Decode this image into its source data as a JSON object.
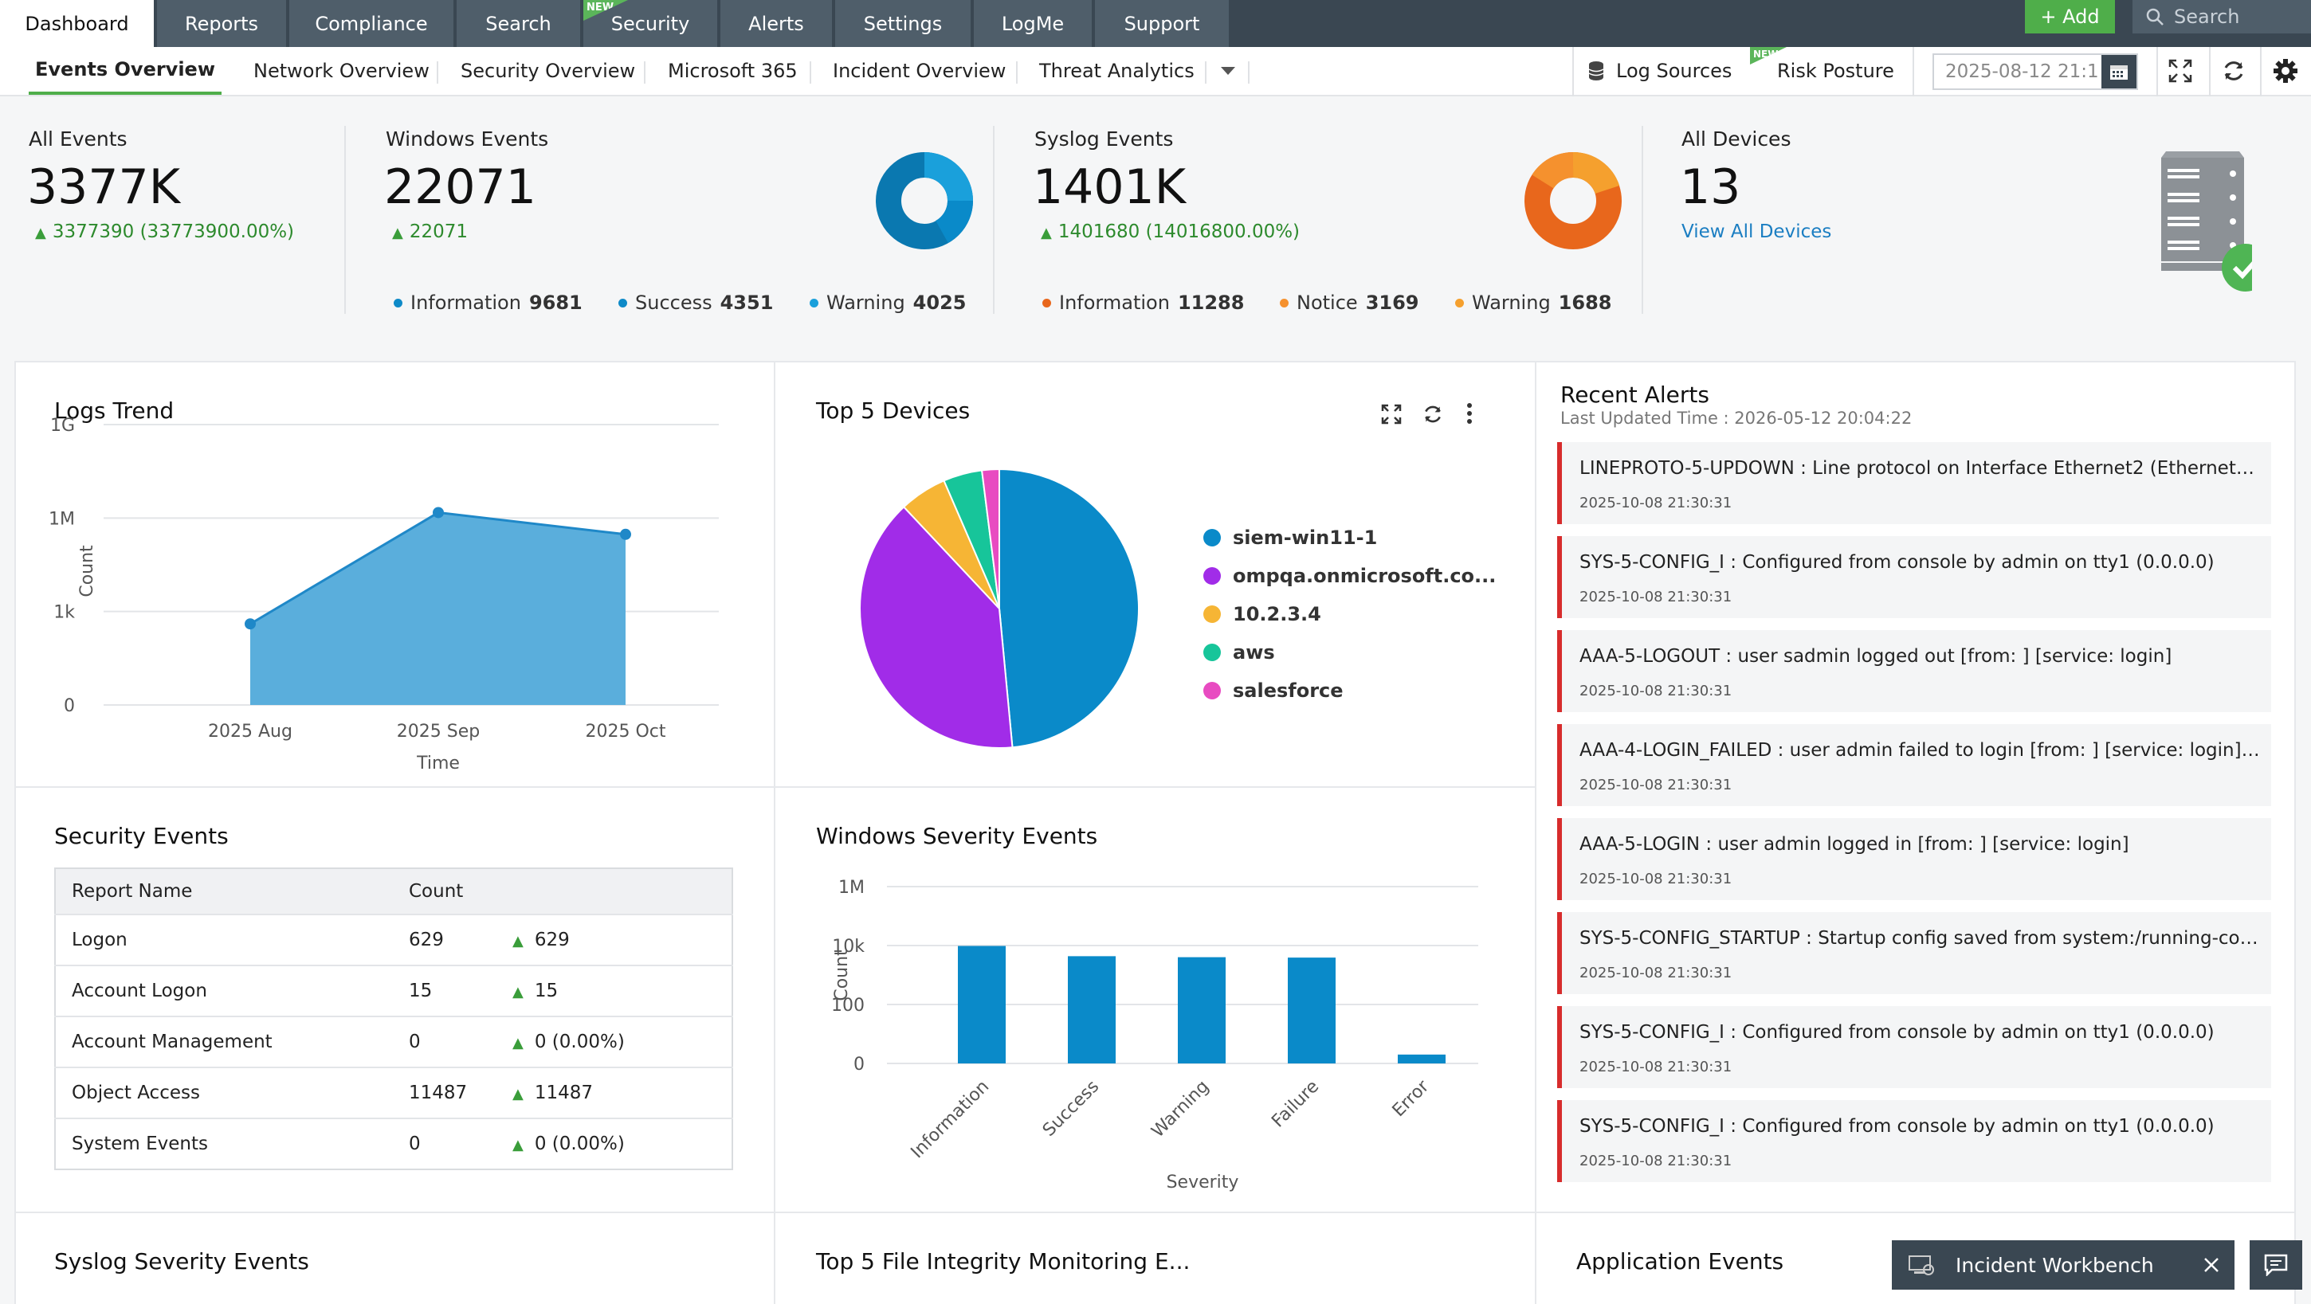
{
  "topnav": {
    "tabs": [
      {
        "label": "Dashboard",
        "active": true
      },
      {
        "label": "Reports"
      },
      {
        "label": "Compliance"
      },
      {
        "label": "Search"
      },
      {
        "label": "Security",
        "badge": "NEW"
      },
      {
        "label": "Alerts"
      },
      {
        "label": "Settings"
      },
      {
        "label": "LogMe"
      },
      {
        "label": "Support"
      }
    ],
    "add_label": "+ Add",
    "search_placeholder": "Search"
  },
  "subnav": {
    "tabs": [
      {
        "label": "Events Overview",
        "active": true
      },
      {
        "label": "Network Overview"
      },
      {
        "label": "Security Overview"
      },
      {
        "label": "Microsoft 365"
      },
      {
        "label": "Incident Overview"
      },
      {
        "label": "Threat Analytics"
      }
    ],
    "log_sources_label": "Log Sources",
    "risk_posture_label": "Risk Posture",
    "risk_badge": "NEW",
    "date_value": "2025-08-12 21:1"
  },
  "summary": {
    "all_events": {
      "title": "All Events",
      "value": "3377K",
      "delta": "3377390 (33773900.00%)"
    },
    "windows_events": {
      "title": "Windows Events",
      "value": "22071",
      "delta": "22071",
      "legend": [
        {
          "label": "Information",
          "count": "9681",
          "color": "#0e8ac8"
        },
        {
          "label": "Success",
          "count": "4351",
          "color": "#0e8ac8"
        },
        {
          "label": "Warning",
          "count": "4025",
          "color": "#1aa0db"
        }
      ]
    },
    "syslog_events": {
      "title": "Syslog Events",
      "value": "1401K",
      "delta": "1401680 (14016800.00%)",
      "legend": [
        {
          "label": "Information",
          "count": "11288",
          "color": "#e8671c"
        },
        {
          "label": "Notice",
          "count": "3169",
          "color": "#f5912e"
        },
        {
          "label": "Warning",
          "count": "1688",
          "color": "#f5a02e"
        }
      ]
    },
    "all_devices": {
      "title": "All Devices",
      "value": "13",
      "link": "View All Devices"
    }
  },
  "logs_trend": {
    "title": "Logs Trend",
    "chart_data": {
      "type": "area",
      "categories": [
        "2025 Aug",
        "2025 Sep",
        "2025 Oct"
      ],
      "values": [
        400,
        1500000,
        300000
      ],
      "xlabel": "Time",
      "ylabel": "Count",
      "yscale": "log",
      "yticks": [
        "0",
        "1k",
        "1M",
        "1G"
      ],
      "color": "#5aaedc"
    }
  },
  "top5_devices": {
    "title": "Top 5 Devices",
    "chart_data": {
      "type": "pie",
      "labels": [
        "siem-win11-1",
        "ompqa.onmicrosoft.co...",
        "10.2.3.4",
        "aws",
        "salesforce"
      ],
      "values": [
        48.5,
        39.5,
        5.5,
        4.5,
        2.0
      ],
      "colors": [
        "#0a8ac9",
        "#a12ce8",
        "#f6b535",
        "#17c59a",
        "#e84bc1"
      ]
    }
  },
  "recent_alerts": {
    "title": "Recent Alerts",
    "updated": "Last Updated Time : 2026-05-12 20:04:22",
    "items": [
      {
        "msg": "LINEPROTO-5-UPDOWN : Line protocol on Interface Ethernet2 (Ethernet123...",
        "time": "2025-10-08 21:30:31"
      },
      {
        "msg": "SYS-5-CONFIG_I : Configured from console by admin on tty1 (0.0.0.0)",
        "time": "2025-10-08 21:30:31"
      },
      {
        "msg": "AAA-5-LOGOUT : user sadmin logged out [from: ] [service: login]",
        "time": "2025-10-08 21:30:31"
      },
      {
        "msg": "AAA-4-LOGIN_FAILED : user admin failed to login [from: ] [service: login] [...",
        "time": "2025-10-08 21:30:31"
      },
      {
        "msg": "AAA-5-LOGIN : user admin logged in [from: ] [service: login]",
        "time": "2025-10-08 21:30:31"
      },
      {
        "msg": "SYS-5-CONFIG_STARTUP : Startup config saved from system:/running-conf...",
        "time": "2025-10-08 21:30:31"
      },
      {
        "msg": "SYS-5-CONFIG_I : Configured from console by admin on tty1 (0.0.0.0)",
        "time": "2025-10-08 21:30:31"
      },
      {
        "msg": "SYS-5-CONFIG_I : Configured from console by admin on tty1 (0.0.0.0)",
        "time": "2025-10-08 21:30:31"
      }
    ]
  },
  "security_events": {
    "title": "Security Events",
    "headers": [
      "Report Name",
      "Count"
    ],
    "rows": [
      {
        "name": "Logon",
        "count": "629",
        "delta": "629"
      },
      {
        "name": "Account Logon",
        "count": "15",
        "delta": "15"
      },
      {
        "name": "Account Management",
        "count": "0",
        "delta": "0 (0.00%)"
      },
      {
        "name": "Object Access",
        "count": "11487",
        "delta": "11487"
      },
      {
        "name": "System Events",
        "count": "0",
        "delta": "0 (0.00%)"
      }
    ]
  },
  "windows_severity": {
    "title": "Windows Severity Events",
    "chart_data": {
      "type": "bar",
      "categories": [
        "Information",
        "Success",
        "Warning",
        "Failure",
        "Error"
      ],
      "values": [
        9681,
        4351,
        4025,
        3900,
        2
      ],
      "xlabel": "Severity",
      "ylabel": "Count",
      "yscale": "log",
      "yticks": [
        "0",
        "100",
        "10k",
        "1M"
      ],
      "color": "#0a8ac9"
    }
  },
  "bottom_titles": {
    "syslog": "Syslog Severity Events",
    "fim": "Top 5 File Integrity Monitoring E...",
    "app": "Application Events"
  },
  "workbench_label": "Incident Workbench"
}
